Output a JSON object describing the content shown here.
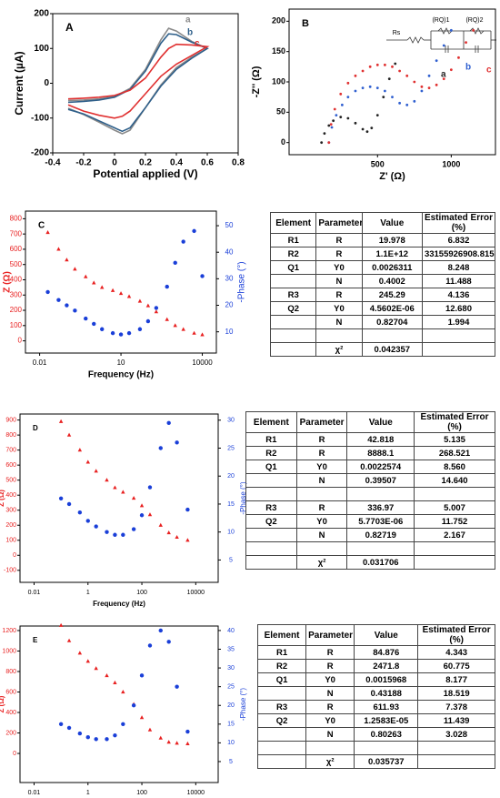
{
  "chart_data": [
    {
      "type": "line",
      "title": "A",
      "xlabel": "Potential applied (V)",
      "ylabel": "Current (µA)",
      "xlim": [
        -0.4,
        0.8
      ],
      "xticks": [
        -0.4,
        -0.2,
        0,
        0.2,
        0.4,
        0.6,
        0.8
      ],
      "ylim": [
        -200,
        200
      ],
      "yticks": [
        -200,
        -100,
        0,
        100,
        200
      ],
      "series": [
        {
          "name": "a",
          "color": "#8a8a8a",
          "x": [
            -0.3,
            -0.2,
            -0.1,
            0,
            0.1,
            0.2,
            0.3,
            0.35,
            0.4,
            0.5,
            0.6,
            0.5,
            0.4,
            0.3,
            0.2,
            0.1,
            0.05,
            0,
            -0.1,
            -0.2,
            -0.3
          ],
          "values": [
            -50,
            -48,
            -45,
            -38,
            -15,
            40,
            125,
            158,
            150,
            120,
            100,
            75,
            45,
            -5,
            -70,
            -135,
            -145,
            -135,
            -112,
            -90,
            -72
          ]
        },
        {
          "name": "b",
          "color": "#2e5f8a",
          "x": [
            -0.3,
            -0.2,
            -0.1,
            0,
            0.1,
            0.2,
            0.3,
            0.35,
            0.4,
            0.5,
            0.6,
            0.5,
            0.4,
            0.3,
            0.2,
            0.1,
            0.05,
            0,
            -0.1,
            -0.2,
            -0.3
          ],
          "values": [
            -55,
            -52,
            -48,
            -40,
            -18,
            35,
            115,
            142,
            140,
            118,
            100,
            72,
            40,
            -8,
            -70,
            -128,
            -138,
            -128,
            -108,
            -88,
            -75
          ]
        },
        {
          "name": "c",
          "color": "#e03030",
          "x": [
            -0.3,
            -0.2,
            -0.1,
            0,
            0.1,
            0.2,
            0.3,
            0.35,
            0.4,
            0.5,
            0.6,
            0.5,
            0.4,
            0.3,
            0.2,
            0.1,
            0.05,
            0,
            -0.1,
            -0.2,
            -0.3
          ],
          "values": [
            -45,
            -43,
            -40,
            -35,
            -20,
            15,
            75,
            100,
            112,
            110,
            105,
            80,
            55,
            20,
            -30,
            -80,
            -95,
            -100,
            -92,
            -80,
            -62
          ]
        }
      ]
    },
    {
      "type": "scatter",
      "title": "B",
      "xlabel": "Z' (Ω)",
      "ylabel": "-Z'' (Ω)",
      "circuit_labels": [
        "Rs",
        "(RQ)1",
        "(RQ)2"
      ],
      "xlim": [
        -100,
        1300
      ],
      "xticks": [
        500,
        1000
      ],
      "ylim": [
        -20,
        220
      ],
      "yticks": [
        0,
        50,
        100,
        150,
        200
      ],
      "series": [
        {
          "name": "a",
          "color": "#222222",
          "x": [
            120,
            140,
            170,
            200,
            250,
            300,
            350,
            400,
            430,
            460,
            500,
            540,
            580,
            620
          ],
          "values": [
            0,
            15,
            28,
            36,
            42,
            40,
            32,
            22,
            18,
            24,
            45,
            75,
            105,
            130
          ]
        },
        {
          "name": "b",
          "color": "#2f5fd0",
          "x": [
            170,
            190,
            220,
            260,
            300,
            350,
            400,
            450,
            500,
            550,
            600,
            650,
            700,
            750,
            800,
            850,
            900,
            950,
            1000
          ],
          "values": [
            0,
            25,
            45,
            62,
            75,
            85,
            90,
            92,
            90,
            85,
            75,
            65,
            62,
            68,
            85,
            110,
            135,
            160,
            185
          ]
        },
        {
          "name": "c",
          "color": "#e03030",
          "x": [
            170,
            185,
            210,
            250,
            300,
            350,
            400,
            450,
            500,
            550,
            600,
            650,
            700,
            750,
            800,
            850,
            900,
            950,
            1000,
            1050,
            1100,
            1150
          ],
          "values": [
            0,
            30,
            55,
            80,
            98,
            110,
            118,
            125,
            128,
            128,
            125,
            118,
            110,
            100,
            92,
            90,
            95,
            105,
            120,
            140,
            165,
            185
          ]
        }
      ]
    },
    {
      "type": "scatter",
      "title": "C",
      "xlabel": "Frequency (Hz)",
      "ylabel": "Z (Ω)",
      "y2label": "-Phase (°)",
      "ylabel_color": "#e82020",
      "y2label_color": "#1a3fd8",
      "xscale": "log",
      "xlim": [
        0.003,
        33000
      ],
      "xticks": [
        0.01,
        10,
        10000
      ],
      "ylim": [
        -80,
        850
      ],
      "yticks": [
        0,
        100,
        200,
        300,
        400,
        500,
        600,
        700,
        800
      ],
      "y2lim": [
        2,
        55.5
      ],
      "y2ticks": [
        10,
        20,
        30,
        40,
        50
      ],
      "x": [
        0.02,
        0.05,
        0.1,
        0.2,
        0.5,
        1,
        2,
        5,
        10,
        20,
        50,
        100,
        200,
        500,
        1000,
        2000,
        5000,
        10000
      ],
      "series": [
        {
          "color": "#e82020",
          "marker": "triangle",
          "values": [
            710,
            600,
            530,
            470,
            420,
            380,
            350,
            330,
            310,
            290,
            260,
            230,
            190,
            140,
            100,
            75,
            50,
            40
          ]
        },
        {
          "color": "#1a3fd8",
          "marker": "circle",
          "axis": "y2",
          "values": [
            25,
            22,
            20,
            18,
            15,
            13,
            11,
            9.5,
            9,
            9.5,
            11,
            14,
            19,
            27,
            36,
            44,
            48,
            31
          ]
        }
      ]
    },
    {
      "type": "scatter",
      "title": "D",
      "xlabel": "Frequency (Hz)",
      "ylabel": "Z (Ω)",
      "y2label": "-Phase (°)",
      "ylabel_color": "#e82020",
      "y2label_color": "#1a3fd8",
      "xscale": "log",
      "xlim": [
        0.003,
        68000
      ],
      "xticks": [
        0.01,
        1,
        100,
        10000
      ],
      "ylim": [
        -180,
        940
      ],
      "yticks": [
        -100,
        0,
        100,
        200,
        300,
        400,
        500,
        600,
        700,
        800,
        900
      ],
      "y2lim": [
        1,
        31.1
      ],
      "y2ticks": [
        5,
        10,
        15,
        20,
        25,
        30
      ],
      "x": [
        0.1,
        0.2,
        0.5,
        1,
        2,
        5,
        10,
        20,
        50,
        100,
        200,
        500,
        1000,
        2000,
        5000
      ],
      "series": [
        {
          "color": "#e82020",
          "marker": "triangle",
          "values": [
            890,
            800,
            700,
            620,
            560,
            500,
            450,
            420,
            380,
            330,
            270,
            200,
            150,
            120,
            100
          ]
        },
        {
          "color": "#1a3fd8",
          "marker": "circle",
          "axis": "y2",
          "values": [
            16,
            15,
            13.5,
            12,
            11,
            10,
            9.5,
            9.5,
            10.5,
            13,
            18,
            25,
            29.5,
            26,
            14
          ]
        }
      ]
    },
    {
      "type": "scatter",
      "title": "E",
      "xlabel": "Frequency (Hz)",
      "ylabel": "Z (Ω)",
      "y2label": "-Phase (°)",
      "ylabel_color": "#e82020",
      "y2label_color": "#1a3fd8",
      "xscale": "log",
      "xlim": [
        0.003,
        68000
      ],
      "xticks": [
        0.01,
        1,
        100,
        10000
      ],
      "ylim": [
        -284,
        1244
      ],
      "yticks": [
        0,
        200,
        400,
        600,
        800,
        1000,
        1200
      ],
      "y2lim": [
        -0.6,
        41.2
      ],
      "y2ticks": [
        5,
        10,
        15,
        20,
        25,
        30,
        35,
        40
      ],
      "x": [
        0.1,
        0.2,
        0.5,
        1,
        2,
        5,
        10,
        20,
        50,
        100,
        200,
        500,
        1000,
        2000,
        5000
      ],
      "series": [
        {
          "color": "#e82020",
          "marker": "triangle",
          "values": [
            1250,
            1100,
            980,
            900,
            830,
            760,
            690,
            600,
            480,
            350,
            230,
            150,
            110,
            100,
            95
          ]
        },
        {
          "color": "#1a3fd8",
          "marker": "circle",
          "axis": "y2",
          "values": [
            15,
            14,
            12.5,
            11.5,
            11,
            11,
            12,
            15,
            20,
            28,
            36,
            40,
            37,
            25,
            13
          ]
        }
      ]
    }
  ],
  "tables": [
    {
      "header": [
        "Element",
        "Parameter",
        "Value",
        "Estimated Error (%)"
      ],
      "rows": [
        [
          "R1",
          "R",
          "19.978",
          "6.832"
        ],
        [
          "R2",
          "R",
          "1.1E+12",
          "33155926908.815"
        ],
        [
          "Q1",
          "Y0",
          "0.0026311",
          "8.248"
        ],
        [
          null,
          "N",
          "0.4002",
          "11.488"
        ],
        [
          "R3",
          "R",
          "245.29",
          "4.136"
        ],
        [
          "Q2",
          "Y0",
          "4.5602E-06",
          "12.680"
        ],
        [
          null,
          "N",
          "0.82704",
          "1.994"
        ],
        [
          null,
          null,
          null,
          null
        ],
        [
          null,
          "χ²",
          "0.042357",
          null
        ]
      ]
    },
    {
      "header": [
        "Element",
        "Parameter",
        "Value",
        "Estimated Error (%)"
      ],
      "rows": [
        [
          "R1",
          "R",
          "42.818",
          "5.135"
        ],
        [
          "R2",
          "R",
          "8888.1",
          "268.521"
        ],
        [
          "Q1",
          "Y0",
          "0.0022574",
          "8.560"
        ],
        [
          null,
          "N",
          "0.39507",
          "14.640"
        ],
        [
          null,
          null,
          null,
          null
        ],
        [
          "R3",
          "R",
          "336.97",
          "5.007"
        ],
        [
          "Q2",
          "Y0",
          "5.7703E-06",
          "11.752"
        ],
        [
          null,
          "N",
          "0.82719",
          "2.167"
        ],
        [
          null,
          null,
          null,
          null
        ],
        [
          null,
          "χ²",
          "0.031706",
          null
        ]
      ]
    },
    {
      "header": [
        "Element",
        "Parameter",
        "Value",
        "Estimated Error (%)"
      ],
      "rows": [
        [
          "R1",
          "R",
          "84.876",
          "4.343"
        ],
        [
          "R2",
          "R",
          "2471.8",
          "60.775"
        ],
        [
          "Q1",
          "Y0",
          "0.0015968",
          "8.177"
        ],
        [
          null,
          "N",
          "0.43188",
          "18.519"
        ],
        [
          "R3",
          "R",
          "611.93",
          "7.378"
        ],
        [
          "Q2",
          "Y0",
          "1.2583E-05",
          "11.439"
        ],
        [
          null,
          "N",
          "0.80263",
          "3.028"
        ],
        [
          null,
          null,
          null,
          null
        ],
        [
          null,
          "χ²",
          "0.035737",
          null
        ]
      ]
    }
  ]
}
